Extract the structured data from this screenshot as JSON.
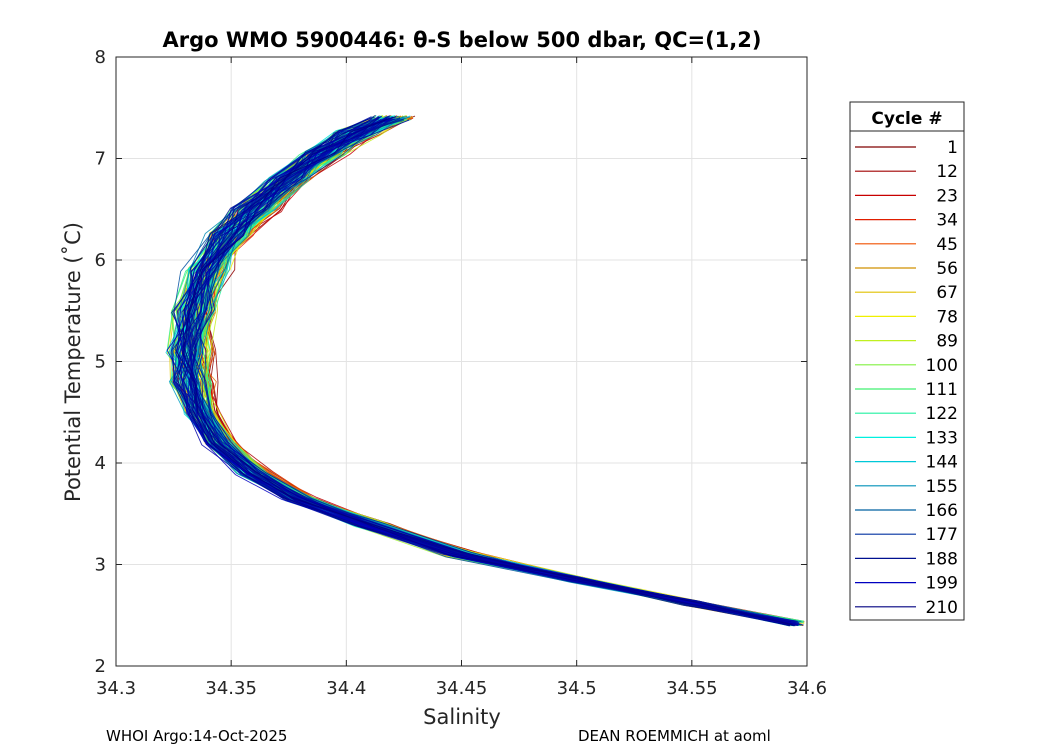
{
  "chart_data": {
    "type": "line",
    "title": "Argo WMO 5900446: θ-S below 500 dbar,  QC=(1,2)",
    "xlabel": "Salinity",
    "ylabel": "Potential Temperature (˚C)",
    "xlim": [
      34.3,
      34.6
    ],
    "ylim": [
      2,
      8
    ],
    "grid": true,
    "x_ticks": [
      "34.3",
      "34.35",
      "34.4",
      "34.45",
      "34.5",
      "34.55",
      "34.6"
    ],
    "y_ticks": [
      "2",
      "3",
      "4",
      "5",
      "6",
      "7",
      "8"
    ],
    "legend": {
      "title": "Cycle #",
      "placement": "right-outside",
      "entries": [
        {
          "label": "1",
          "color": "#800000"
        },
        {
          "label": "12",
          "color": "#a00000"
        },
        {
          "label": "23",
          "color": "#c80000"
        },
        {
          "label": "34",
          "color": "#e01e00"
        },
        {
          "label": "45",
          "color": "#f05000"
        },
        {
          "label": "56",
          "color": "#d09000"
        },
        {
          "label": "67",
          "color": "#e0c000"
        },
        {
          "label": "78",
          "color": "#f0f000"
        },
        {
          "label": "89",
          "color": "#c0f020"
        },
        {
          "label": "100",
          "color": "#80f040"
        },
        {
          "label": "111",
          "color": "#40f070"
        },
        {
          "label": "122",
          "color": "#20f0a0"
        },
        {
          "label": "133",
          "color": "#00f0e0"
        },
        {
          "label": "144",
          "color": "#00c8d8"
        },
        {
          "label": "155",
          "color": "#0090b8"
        },
        {
          "label": "166",
          "color": "#0060a0"
        },
        {
          "label": "177",
          "color": "#0030a0"
        },
        {
          "label": "188",
          "color": "#001090"
        },
        {
          "label": "199",
          "color": "#0000c0"
        },
        {
          "label": "210",
          "color": "#000080"
        }
      ]
    },
    "typical_profile": {
      "salinity": [
        34.595,
        34.55,
        34.5,
        34.45,
        34.41,
        34.38,
        34.36,
        34.345,
        34.337,
        34.333,
        34.332,
        34.334,
        34.34,
        34.35,
        34.36,
        34.375,
        34.39,
        34.405,
        34.42
      ],
      "temperature": [
        2.42,
        2.62,
        2.85,
        3.1,
        3.4,
        3.65,
        3.9,
        4.2,
        4.5,
        4.8,
        5.1,
        5.5,
        5.9,
        6.25,
        6.5,
        6.8,
        7.05,
        7.25,
        7.4
      ]
    },
    "series_count": 210
  },
  "footer": {
    "left": "WHOI Argo:14-Oct-2025",
    "right": "DEAN ROEMMICH at aoml"
  }
}
